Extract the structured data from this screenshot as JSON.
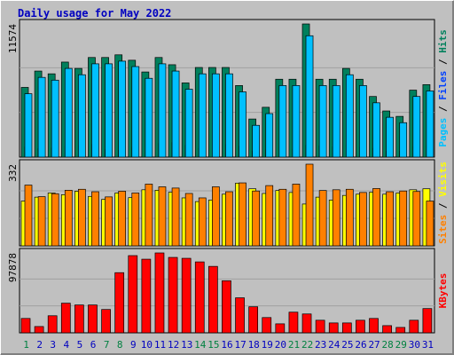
{
  "title": "Daily usage for May 2022",
  "legend_separator": " / ",
  "chart_data": [
    {
      "type": "bar",
      "ylim": [
        0,
        11574
      ],
      "yticks": [
        11574
      ],
      "series": [
        {
          "name": "Hits",
          "color": "#00805c",
          "values": [
            6060,
            7480,
            7240,
            8260,
            7710,
            8660,
            8660,
            8890,
            8420,
            7400,
            8660,
            8030,
            6450,
            7790,
            7790,
            7790,
            6220,
            3310,
            4330,
            6770,
            6770,
            11574,
            6770,
            6770,
            7710,
            6770,
            5270,
            4010,
            3540,
            5820,
            6300
          ]
        },
        {
          "name": "Files",
          "color": "#0040ff",
          "values": [
            880,
            720,
            790,
            950,
            1020,
            1100,
            640,
            580,
            870,
            930,
            1180,
            1260,
            1020,
            760,
            700,
            1100,
            940,
            520,
            610,
            870,
            690,
            1020,
            980,
            900,
            1050,
            820,
            760,
            540,
            500,
            890,
            960
          ]
        },
        {
          "name": "Pages",
          "color": "#00c0ff",
          "values": [
            5510,
            6930,
            6690,
            7710,
            7160,
            8110,
            8110,
            8340,
            7870,
            6850,
            8110,
            7480,
            5900,
            7240,
            7240,
            7240,
            5670,
            2760,
            3780,
            6220,
            6220,
            10550,
            6220,
            6220,
            7160,
            6220,
            4720,
            3460,
            2990,
            5270,
            5750
          ]
        }
      ]
    },
    {
      "type": "bar",
      "ylim": [
        0,
        332
      ],
      "yticks": [
        332
      ],
      "series": [
        {
          "name": "Visits",
          "color": "#ffff00",
          "values": [
            182,
            198,
            215,
            208,
            222,
            201,
            189,
            215,
            196,
            228,
            226,
            218,
            195,
            180,
            186,
            210,
            255,
            232,
            213,
            225,
            217,
            170,
            198,
            186,
            205,
            210,
            218,
            210,
            215,
            228,
            232
          ]
        },
        {
          "name": "Sites",
          "color": "#ff8000",
          "values": [
            247,
            200,
            212,
            226,
            230,
            220,
            199,
            222,
            215,
            251,
            240,
            235,
            213,
            195,
            240,
            220,
            256,
            223,
            245,
            230,
            251,
            332,
            225,
            228,
            230,
            217,
            233,
            220,
            223,
            221,
            182
          ]
        }
      ]
    },
    {
      "type": "bar",
      "ylim": [
        0,
        97878
      ],
      "yticks": [
        97878
      ],
      "categories": [
        "1",
        "2",
        "3",
        "4",
        "5",
        "6",
        "7",
        "8",
        "9",
        "10",
        "11",
        "12",
        "13",
        "14",
        "15",
        "16",
        "17",
        "18",
        "19",
        "20",
        "21",
        "22",
        "23",
        "24",
        "25",
        "26",
        "27",
        "28",
        "29",
        "30",
        "31"
      ],
      "category_colors": [
        "#008040",
        "#0000c0",
        "#0000c0",
        "#0000c0",
        "#0000c0",
        "#0000c0",
        "#008040",
        "#008040",
        "#0000c0",
        "#0000c0",
        "#0000c0",
        "#0000c0",
        "#0000c0",
        "#008040",
        "#008040",
        "#0000c0",
        "#0000c0",
        "#0000c0",
        "#0000c0",
        "#0000c0",
        "#008040",
        "#008040",
        "#0000c0",
        "#0000c0",
        "#0000c0",
        "#0000c0",
        "#0000c0",
        "#008040",
        "#008040",
        "#0000c0",
        "#0000c0"
      ],
      "series": [
        {
          "name": "KBytes",
          "color": "#ff0000",
          "values": [
            17600,
            7700,
            20900,
            36300,
            34100,
            34100,
            28600,
            73700,
            94600,
            90200,
            97878,
            92400,
            91300,
            86900,
            81400,
            63800,
            42900,
            31900,
            18700,
            11000,
            25300,
            23100,
            15400,
            12100,
            12100,
            15400,
            17600,
            8800,
            6600,
            15400,
            29700
          ]
        }
      ]
    }
  ]
}
